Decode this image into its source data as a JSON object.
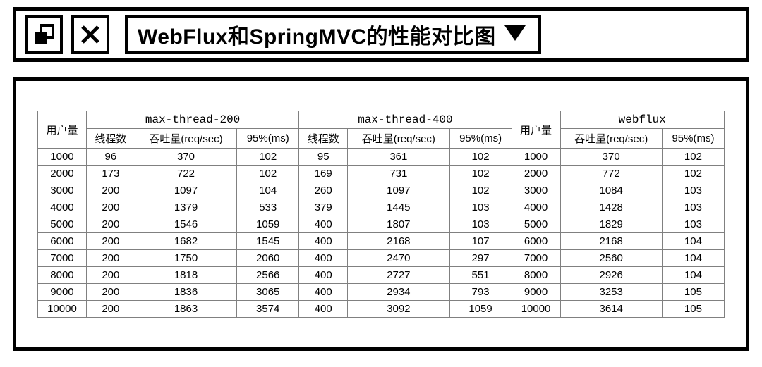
{
  "header": {
    "title": "WebFlux和SpringMVC的性能对比图"
  },
  "table": {
    "colors": {
      "border": "#808080",
      "text": "#000000",
      "background": "#ffffff"
    },
    "font_size": 15,
    "group_headers": {
      "usercount_left": "用户量",
      "group1": "max-thread-200",
      "group2": "max-thread-400",
      "usercount_right": "用户量",
      "group3": "webflux"
    },
    "sub_headers": {
      "threads": "线程数",
      "throughput": "吞吐量(req/sec)",
      "p95": "95%(ms)"
    },
    "rows": [
      {
        "users": 1000,
        "t200_threads": 96,
        "t200_tp": 370,
        "t200_p95": 102,
        "t400_threads": 95,
        "t400_tp": 361,
        "t400_p95": 102,
        "users2": 1000,
        "wf_tp": 370,
        "wf_p95": 102
      },
      {
        "users": 2000,
        "t200_threads": 173,
        "t200_tp": 722,
        "t200_p95": 102,
        "t400_threads": 169,
        "t400_tp": 731,
        "t400_p95": 102,
        "users2": 2000,
        "wf_tp": 772,
        "wf_p95": 102
      },
      {
        "users": 3000,
        "t200_threads": 200,
        "t200_tp": 1097,
        "t200_p95": 104,
        "t400_threads": 260,
        "t400_tp": 1097,
        "t400_p95": 102,
        "users2": 3000,
        "wf_tp": 1084,
        "wf_p95": 103
      },
      {
        "users": 4000,
        "t200_threads": 200,
        "t200_tp": 1379,
        "t200_p95": 533,
        "t400_threads": 379,
        "t400_tp": 1445,
        "t400_p95": 103,
        "users2": 4000,
        "wf_tp": 1428,
        "wf_p95": 103
      },
      {
        "users": 5000,
        "t200_threads": 200,
        "t200_tp": 1546,
        "t200_p95": 1059,
        "t400_threads": 400,
        "t400_tp": 1807,
        "t400_p95": 103,
        "users2": 5000,
        "wf_tp": 1829,
        "wf_p95": 103
      },
      {
        "users": 6000,
        "t200_threads": 200,
        "t200_tp": 1682,
        "t200_p95": 1545,
        "t400_threads": 400,
        "t400_tp": 2168,
        "t400_p95": 107,
        "users2": 6000,
        "wf_tp": 2168,
        "wf_p95": 104
      },
      {
        "users": 7000,
        "t200_threads": 200,
        "t200_tp": 1750,
        "t200_p95": 2060,
        "t400_threads": 400,
        "t400_tp": 2470,
        "t400_p95": 297,
        "users2": 7000,
        "wf_tp": 2560,
        "wf_p95": 104
      },
      {
        "users": 8000,
        "t200_threads": 200,
        "t200_tp": 1818,
        "t200_p95": 2566,
        "t400_threads": 400,
        "t400_tp": 2727,
        "t400_p95": 551,
        "users2": 8000,
        "wf_tp": 2926,
        "wf_p95": 104
      },
      {
        "users": 9000,
        "t200_threads": 200,
        "t200_tp": 1836,
        "t200_p95": 3065,
        "t400_threads": 400,
        "t400_tp": 2934,
        "t400_p95": 793,
        "users2": 9000,
        "wf_tp": 3253,
        "wf_p95": 105
      },
      {
        "users": 10000,
        "t200_threads": 200,
        "t200_tp": 1863,
        "t200_p95": 3574,
        "t400_threads": 400,
        "t400_tp": 3092,
        "t400_p95": 1059,
        "users2": 10000,
        "wf_tp": 3614,
        "wf_p95": 105
      }
    ]
  }
}
